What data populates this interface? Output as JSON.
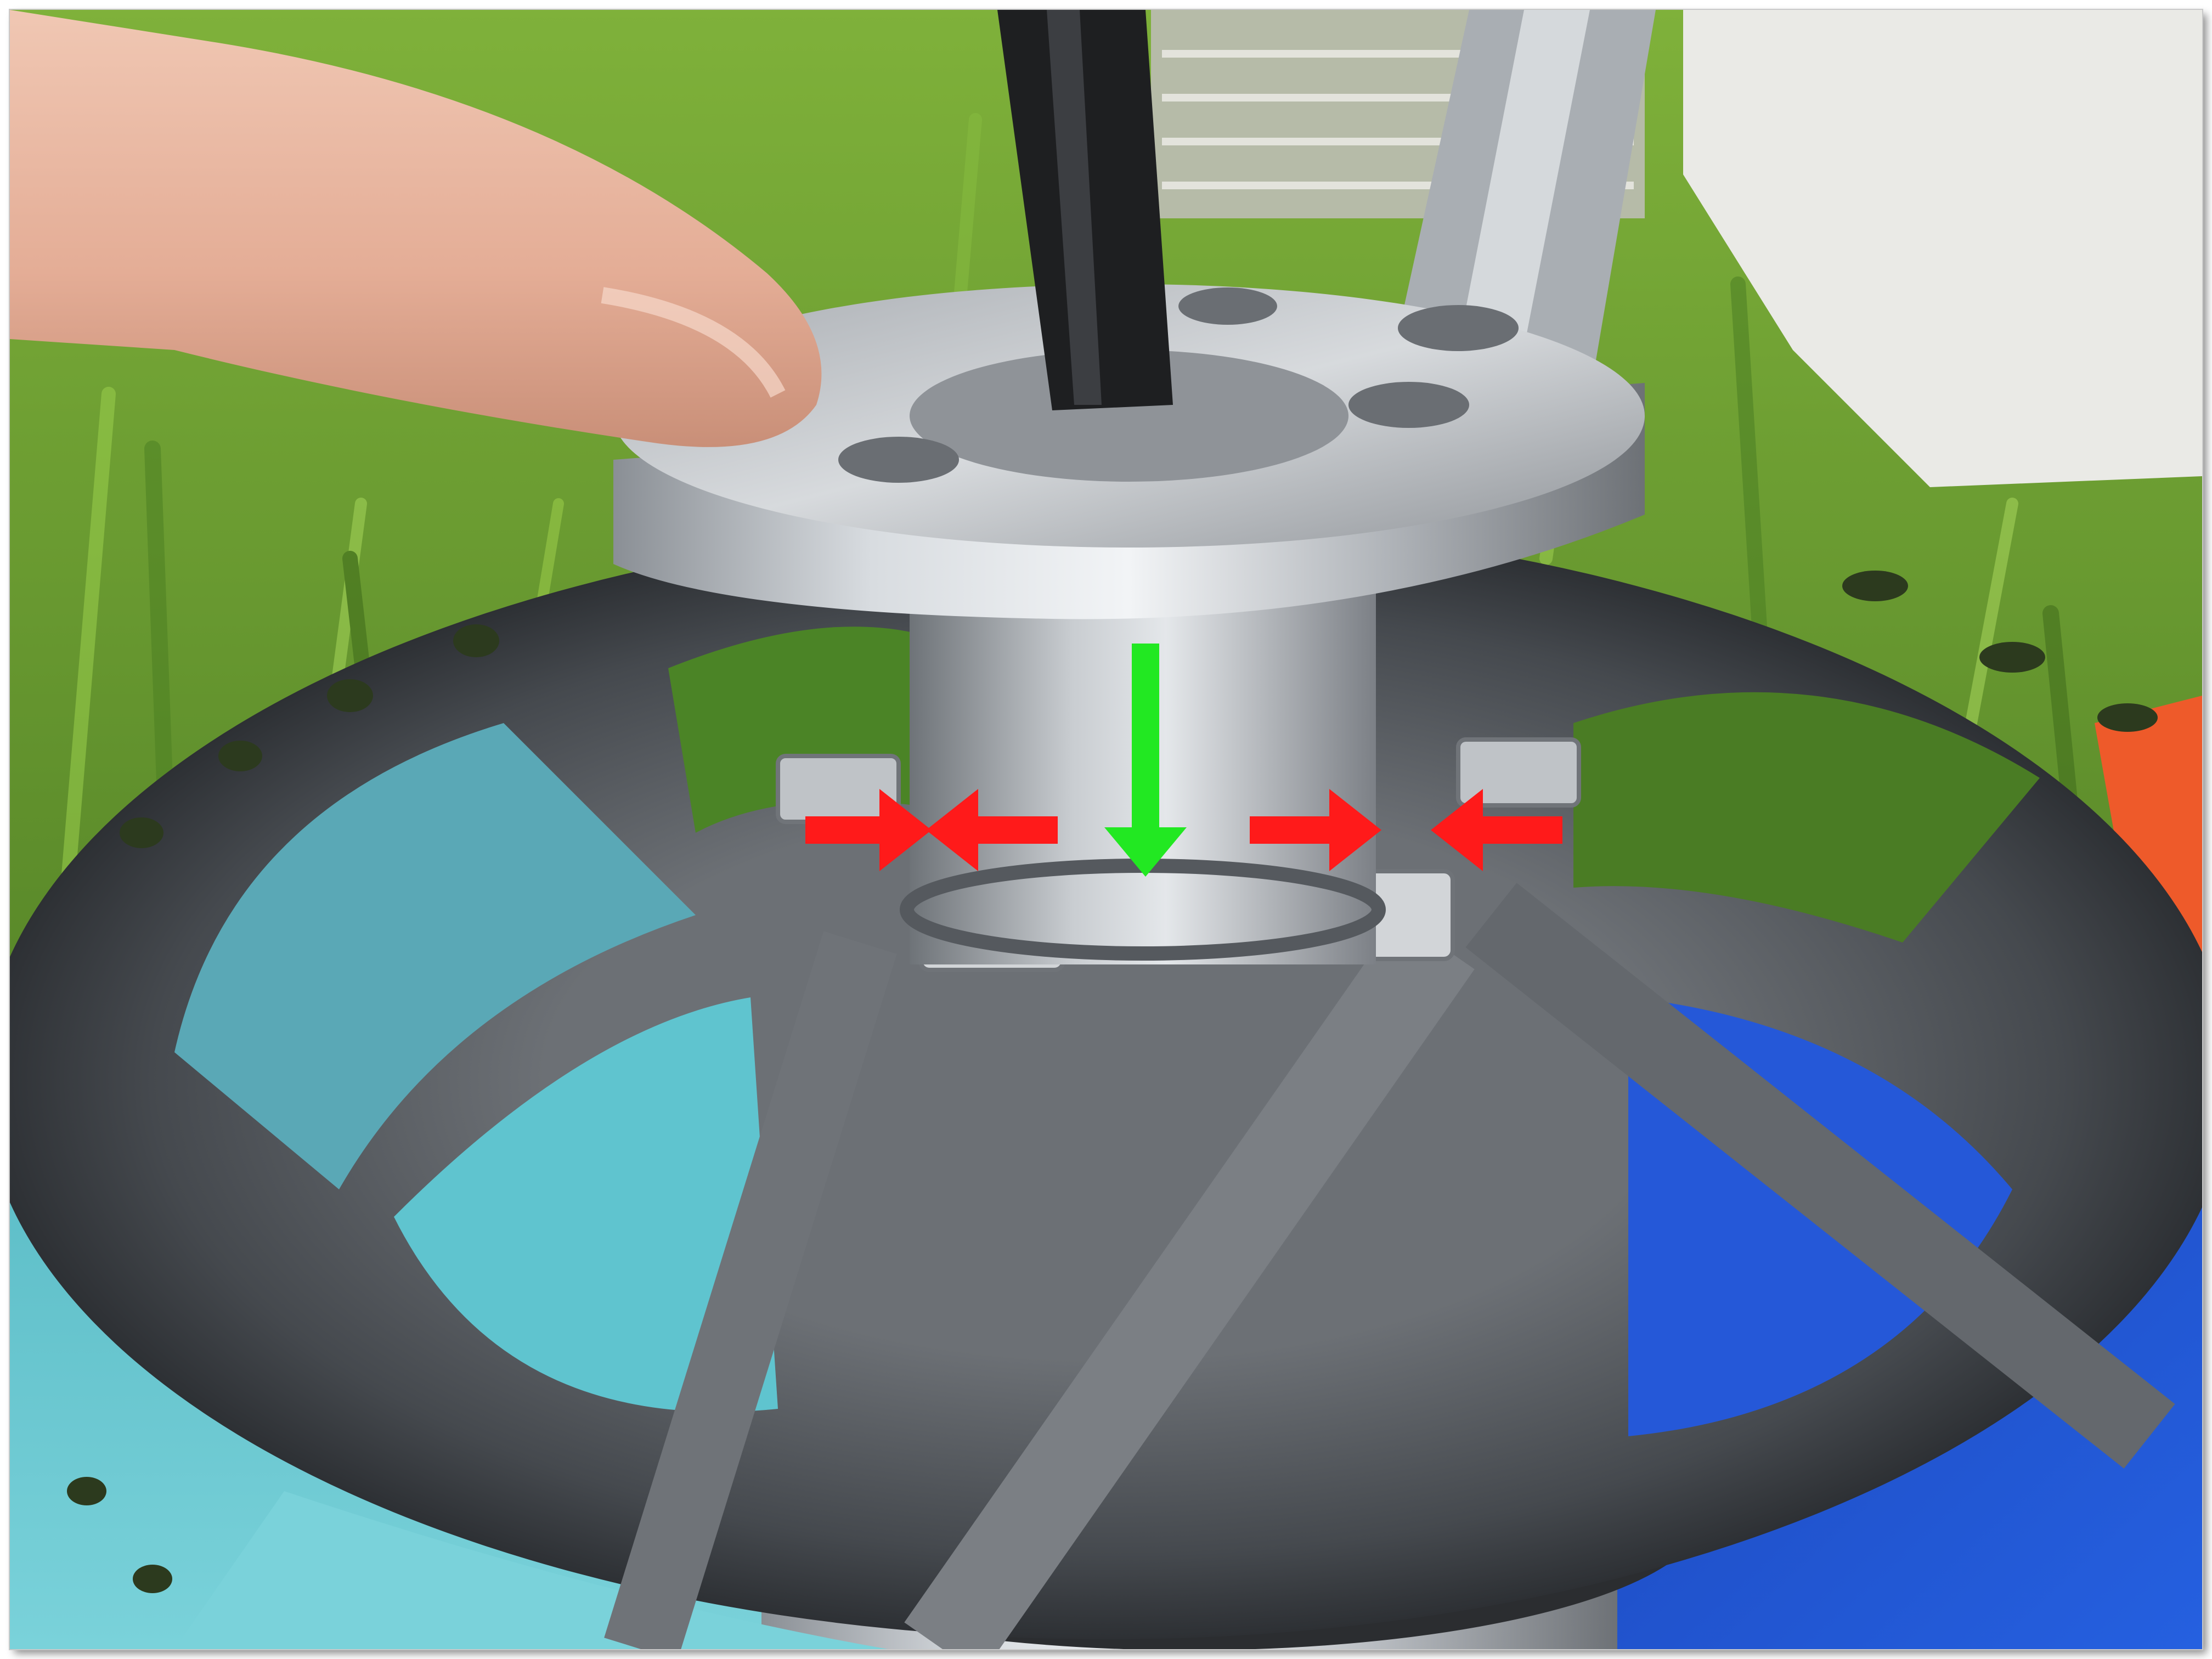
{
  "photo": {
    "subject": "",
    "background_color": "#5f8f2c"
  },
  "annotations": {
    "arrow_colors": {
      "red": "#ff1a1a",
      "green": "#22e822"
    },
    "red_arrow_count": 4,
    "green_arrow_count": 1
  },
  "colors": {
    "grass_dark": "#3f6e1d",
    "grass_light": "#8fc24a",
    "aluminum": "#b9bdc2",
    "rotor_steel": "#55595e",
    "teal_plate": "#5fc4cf",
    "blue_plate": "#1f4fc8",
    "skin": "#e9b9a3"
  }
}
